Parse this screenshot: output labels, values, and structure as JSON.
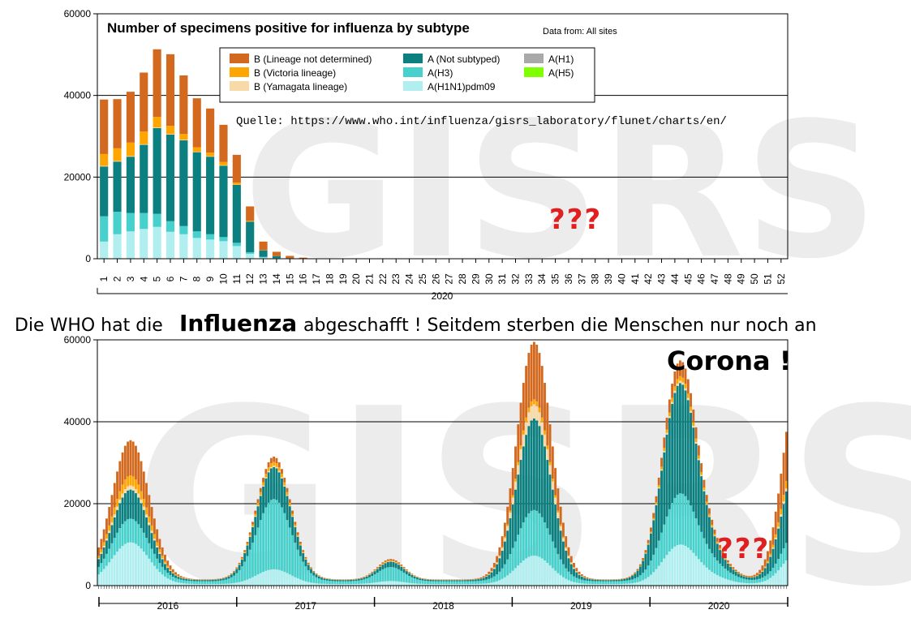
{
  "colors": {
    "b_not_determined": "#D2691E",
    "b_victoria": "#FFA500",
    "b_yamagata": "#F8D9A8",
    "a_not_subtyped": "#0C8080",
    "a_h3": "#48D1CC",
    "a_h1n1pdm09": "#B0EEF0",
    "a_h1": "#A9A9A9",
    "a_h5": "#7FFF00",
    "question": "#e02020"
  },
  "top_chart": {
    "title": "Number of specimens positive for influenza by subtype",
    "data_from": "Data from: All sites",
    "source": "Quelle:  https://www.who.int/influenza/gisrs_laboratory/flunet/charts/en/",
    "question_marks": "???",
    "watermark": "GISRS",
    "year_label": "2020",
    "y_ticks": [
      "0",
      "20000",
      "40000",
      "60000"
    ]
  },
  "legend": [
    {
      "label": "B (Lineage not determined)",
      "color": "#D2691E"
    },
    {
      "label": "A (Not subtyped)",
      "color": "#0C8080"
    },
    {
      "label": "A(H1)",
      "color": "#A9A9A9"
    },
    {
      "label": "B (Victoria lineage)",
      "color": "#FFA500"
    },
    {
      "label": "A(H3)",
      "color": "#48D1CC"
    },
    {
      "label": "A(H5)",
      "color": "#7FFF00"
    },
    {
      "label": "B (Yamagata lineage)",
      "color": "#F8D9A8"
    },
    {
      "label": "A(H1N1)pdm09",
      "color": "#B0EEF0"
    }
  ],
  "banner": {
    "part1": "Die WHO hat die",
    "part2": "Influenza",
    "part3": "abgeschafft !  Seitdem sterben die Menschen nur noch an"
  },
  "bottom_chart": {
    "corona": "Corona !",
    "question_marks": "???",
    "watermark": "GISRS",
    "years": [
      "2016",
      "2017",
      "2018",
      "2019",
      "2020"
    ],
    "y_ticks": [
      "0",
      "20000",
      "40000",
      "60000"
    ]
  },
  "chart_data": [
    {
      "type": "bar",
      "stacked": true,
      "title": "Number of specimens positive for influenza by subtype",
      "xlabel": "2020",
      "ylabel": "",
      "ylim": [
        0,
        60000
      ],
      "grid": true,
      "legend_position": "top-center",
      "categories": [
        "1",
        "2",
        "3",
        "4",
        "5",
        "6",
        "7",
        "8",
        "9",
        "10",
        "11",
        "12",
        "13",
        "14",
        "15",
        "16",
        "17",
        "18",
        "19",
        "20",
        "21",
        "22",
        "23",
        "24",
        "25",
        "26",
        "27",
        "28",
        "29",
        "30",
        "31",
        "32",
        "33",
        "34",
        "35",
        "36",
        "37",
        "38",
        "39",
        "40",
        "41",
        "42",
        "43",
        "44",
        "45",
        "46",
        "47",
        "48",
        "49",
        "50",
        "51",
        "52"
      ],
      "series": [
        {
          "name": "A(H1N1)pdm09",
          "values": [
            4200,
            6000,
            6700,
            7300,
            7800,
            6600,
            6000,
            5100,
            4700,
            4300,
            3100,
            1200,
            300,
            100,
            30,
            10,
            0,
            0,
            0,
            0,
            0,
            0,
            0,
            0,
            0,
            0,
            0,
            0,
            0,
            0,
            0,
            0,
            0,
            0,
            0,
            0,
            0,
            0,
            0,
            0,
            0,
            0,
            0,
            0,
            0,
            0,
            0,
            0,
            0,
            0,
            0,
            0
          ]
        },
        {
          "name": "A(H3)",
          "values": [
            6200,
            5500,
            4500,
            3900,
            3200,
            2600,
            2000,
            1600,
            1300,
            1000,
            800,
            400,
            150,
            50,
            20,
            10,
            0,
            0,
            0,
            0,
            0,
            0,
            0,
            0,
            0,
            0,
            0,
            0,
            0,
            0,
            0,
            0,
            0,
            0,
            0,
            0,
            0,
            0,
            0,
            0,
            0,
            0,
            0,
            0,
            0,
            0,
            0,
            0,
            0,
            0,
            0,
            0
          ]
        },
        {
          "name": "A (Not subtyped)",
          "values": [
            12200,
            12300,
            13800,
            16700,
            21000,
            21200,
            21000,
            19400,
            19000,
            17500,
            14200,
            7500,
            1600,
            500,
            100,
            50,
            20,
            0,
            0,
            0,
            0,
            0,
            0,
            0,
            0,
            0,
            0,
            0,
            0,
            0,
            0,
            0,
            0,
            0,
            0,
            0,
            0,
            0,
            0,
            0,
            0,
            0,
            0,
            0,
            0,
            0,
            0,
            0,
            0,
            0,
            0,
            0
          ]
        },
        {
          "name": "B (Yamagata lineage)",
          "values": [
            150,
            150,
            150,
            150,
            150,
            150,
            150,
            100,
            100,
            100,
            50,
            20,
            0,
            0,
            0,
            0,
            0,
            0,
            0,
            0,
            0,
            0,
            0,
            0,
            0,
            0,
            0,
            0,
            0,
            0,
            0,
            0,
            0,
            0,
            0,
            0,
            0,
            0,
            0,
            0,
            0,
            0,
            0,
            0,
            0,
            0,
            0,
            0,
            0,
            0,
            0,
            0
          ]
        },
        {
          "name": "B (Victoria lineage)",
          "values": [
            2900,
            3100,
            3300,
            3100,
            2600,
            2000,
            1400,
            1100,
            900,
            800,
            500,
            200,
            50,
            0,
            0,
            0,
            0,
            0,
            0,
            0,
            0,
            0,
            0,
            0,
            0,
            0,
            0,
            0,
            0,
            0,
            0,
            0,
            0,
            0,
            0,
            0,
            0,
            0,
            0,
            0,
            0,
            0,
            0,
            0,
            0,
            0,
            0,
            0,
            0,
            0,
            0,
            0
          ]
        },
        {
          "name": "B (Lineage not determined)",
          "values": [
            13350,
            12050,
            12450,
            14450,
            16550,
            17550,
            14350,
            12000,
            10800,
            9100,
            6800,
            3500,
            2100,
            1050,
            550,
            200,
            80,
            40,
            30,
            20,
            20,
            20,
            20,
            20,
            10,
            10,
            10,
            10,
            10,
            10,
            10,
            10,
            10,
            10,
            10,
            10,
            10,
            10,
            10,
            10,
            10,
            10,
            10,
            10,
            10,
            10,
            10,
            10,
            10,
            10,
            10,
            10
          ]
        }
      ]
    },
    {
      "type": "bar",
      "stacked": true,
      "title": "",
      "xlabel": "",
      "ylabel": "",
      "ylim": [
        0,
        60000
      ],
      "grid": true,
      "x_axis_years": [
        "2016",
        "2017",
        "2018",
        "2019",
        "2020"
      ],
      "weeks_per_year": 52,
      "series_order": [
        "A(H1N1)pdm09",
        "A(H3)",
        "A (Not subtyped)",
        "B (Yamagata lineage)",
        "B (Victoria lineage)",
        "B (Lineage not determined)"
      ],
      "seasons": [
        {
          "peak_week_index": 12,
          "peak_total": 34000,
          "width": 7,
          "share": [
            0.3,
            0.15,
            0.2,
            0.03,
            0.07,
            0.25
          ]
        },
        {
          "peak_week_index": 66,
          "peak_total": 30000,
          "width": 6.5,
          "share": [
            0.12,
            0.55,
            0.25,
            0.01,
            0.03,
            0.04
          ]
        },
        {
          "peak_week_index": 110,
          "peak_total": 5000,
          "width": 5,
          "share": [
            0.15,
            0.55,
            0.2,
            0.02,
            0.03,
            0.05
          ]
        },
        {
          "peak_week_index": 164,
          "peak_total": 58000,
          "width": 6.5,
          "share": [
            0.12,
            0.18,
            0.38,
            0.06,
            0.02,
            0.24
          ]
        },
        {
          "peak_week_index": 219,
          "peak_total": 53000,
          "width": 6.5,
          "share": [
            0.18,
            0.22,
            0.5,
            0.01,
            0.02,
            0.07
          ]
        },
        {
          "peak_week_index": 232,
          "peak_total": 5000,
          "width": 6,
          "share": [
            0.25,
            0.35,
            0.25,
            0.01,
            0.05,
            0.09
          ]
        },
        {
          "peak_week_index": 264,
          "peak_total": 51000,
          "width": 6,
          "share": [
            0.16,
            0.1,
            0.34,
            0.02,
            0.05,
            0.33
          ]
        }
      ],
      "baseline_total": 1500,
      "cutoff_week_index": 272
    }
  ]
}
